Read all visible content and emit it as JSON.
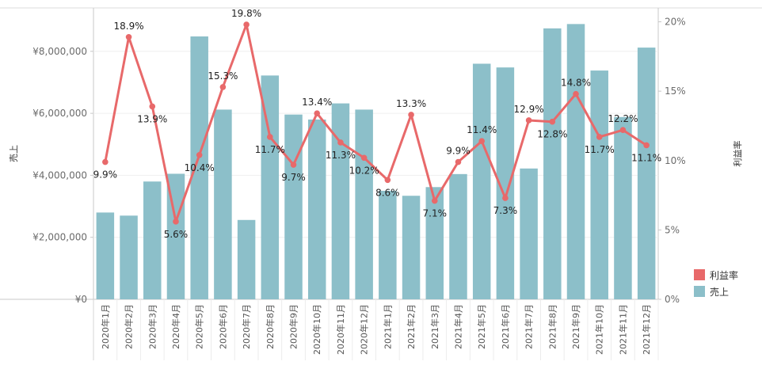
{
  "chart_data": {
    "type": "bar+line",
    "categories": [
      "2020年1月",
      "2020年2月",
      "2020年3月",
      "2020年4月",
      "2020年5月",
      "2020年6月",
      "2020年7月",
      "2020年8月",
      "2020年9月",
      "2020年10月",
      "2020年11月",
      "2020年12月",
      "2021年1月",
      "2021年2月",
      "2021年3月",
      "2021年4月",
      "2021年5月",
      "2021年6月",
      "2021年7月",
      "2021年8月",
      "2021年9月",
      "2021年10月",
      "2021年11月",
      "2021年12月"
    ],
    "series": [
      {
        "name": "売上",
        "type": "bar",
        "axis": "left",
        "color": "#8cbfc9",
        "values": [
          2800000,
          2700000,
          3800000,
          4050000,
          8480000,
          6120000,
          2560000,
          7220000,
          5960000,
          5800000,
          6320000,
          6120000,
          3500000,
          3340000,
          3620000,
          4040000,
          7600000,
          7480000,
          4220000,
          8740000,
          8880000,
          7380000,
          5880000,
          8120000
        ]
      },
      {
        "name": "利益率",
        "type": "line",
        "axis": "right",
        "color": "#e8696a",
        "values": [
          9.9,
          18.9,
          13.9,
          5.6,
          10.4,
          15.3,
          19.8,
          11.7,
          9.7,
          13.4,
          11.3,
          10.2,
          8.6,
          13.3,
          7.1,
          9.9,
          11.4,
          7.3,
          12.9,
          12.8,
          14.8,
          11.7,
          12.2,
          11.1
        ],
        "labels": [
          "9.9%",
          "18.9%",
          "13.9%",
          "5.6%",
          "10.4%",
          "15.3%",
          "19.8%",
          "11.7%",
          "9.7%",
          "13.4%",
          "11.3%",
          "10.2%",
          "8.6%",
          "13.3%",
          "7.1%",
          "9.9%",
          "11.4%",
          "7.3%",
          "12.9%",
          "12.8%",
          "14.8%",
          "11.7%",
          "12.2%",
          "11.1%"
        ]
      }
    ],
    "ylabel": "売上",
    "y2label": "利益率",
    "ylim": [
      0,
      9400000
    ],
    "y2lim": [
      0,
      21
    ],
    "yticks": [
      0,
      2000000,
      4000000,
      6000000,
      8000000
    ],
    "yticks_labels": [
      "¥0",
      "¥2,000,000",
      "¥4,000,000",
      "¥6,000,000",
      "¥8,000,000"
    ],
    "y2ticks": [
      0,
      5,
      10,
      15,
      20
    ],
    "y2ticks_labels": [
      "0%",
      "5%",
      "10%",
      "15%",
      "20%"
    ],
    "grid": "horizontal",
    "legend": {
      "position": "bottom-right",
      "entries": [
        {
          "label": "利益率",
          "color": "#e8696a"
        },
        {
          "label": "売上",
          "color": "#8cbfc9"
        }
      ]
    }
  }
}
